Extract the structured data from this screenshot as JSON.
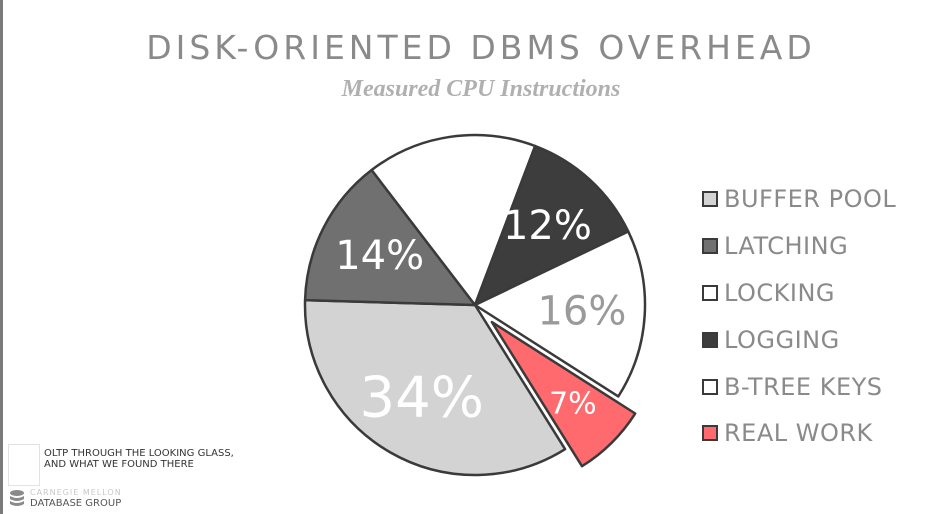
{
  "chart_data": {
    "type": "pie",
    "title": "DISK-ORIENTED DBMS OVERHEAD",
    "subtitle": "Measured CPU Instructions",
    "slices": [
      {
        "name": "BUFFER POOL",
        "value": 34,
        "label": "34%",
        "color": "#d3d3d3",
        "label_color": "#ffffff",
        "exploded": false
      },
      {
        "name": "LATCHING",
        "value": 14,
        "label": "14%",
        "color": "#707070",
        "label_color": "#ffffff",
        "exploded": false
      },
      {
        "name": "LOCKING",
        "value": 16,
        "label": "",
        "color": "#ffffff",
        "label_color": "#8a8a8a",
        "exploded": false
      },
      {
        "name": "LOGGING",
        "value": 12,
        "label": "12%",
        "color": "#3d3d3d",
        "label_color": "#ffffff",
        "exploded": false
      },
      {
        "name": "B-TREE KEYS",
        "value": 16,
        "label": "16%",
        "color": "#ffffff",
        "label_color": "#9a9a9a",
        "exploded": false
      },
      {
        "name": "REAL WORK",
        "value": 7,
        "label": "7%",
        "color": "#ff6a6f",
        "label_color": "#ffffff",
        "exploded": true
      }
    ],
    "legend_position": "right"
  },
  "footer": {
    "line1": "OLTP THROUGH THE LOOKING GLASS,",
    "line2": "AND WHAT WE FOUND THERE"
  },
  "logo": {
    "org": "CARNEGIE MELLON",
    "group": "DATABASE GROUP"
  }
}
